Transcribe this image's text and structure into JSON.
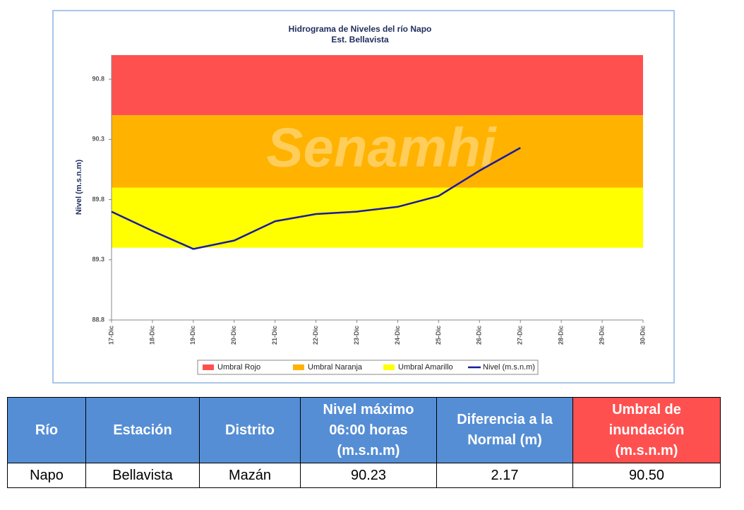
{
  "chart_data": {
    "type": "line",
    "title": "Hidrograma de Niveles del río Napo",
    "subtitle": "Est. Bellavista",
    "y_label": "Nivel (m.s.n.m)",
    "watermark": "Senamhi",
    "categories": [
      "17-Dic",
      "18-Dic",
      "19-Dic",
      "20-Dic",
      "21-Dic",
      "22-Dic",
      "23-Dic",
      "24-Dic",
      "25-Dic",
      "26-Dic",
      "27-Dic",
      "28-Dic",
      "29-Dic",
      "30-Dic"
    ],
    "bands": [
      {
        "name": "Umbral Rojo",
        "color": "#ff5050",
        "from": 90.5,
        "to": 91.0
      },
      {
        "name": "Umbral Naranja",
        "color": "#ffb200",
        "from": 89.9,
        "to": 90.5
      },
      {
        "name": "Umbral Amarillo",
        "color": "#ffff00",
        "from": 89.4,
        "to": 89.9
      }
    ],
    "series": [
      {
        "name": "Nivel (m.s.n.m)",
        "color": "#1a1aa0",
        "values": [
          89.7,
          89.54,
          89.39,
          89.46,
          89.62,
          89.68,
          89.7,
          89.74,
          89.83,
          90.04,
          90.23,
          null,
          null,
          null
        ]
      }
    ],
    "ylim": [
      88.8,
      91.0
    ],
    "yticks": [
      88.8,
      89.3,
      89.8,
      90.3,
      90.8
    ],
    "legend": "bottom"
  },
  "table": {
    "header": [
      "Río",
      "Estación",
      "Distrito",
      "Nivel máximo 06:00 horas (m.s.n.m)",
      "Diferencia a la Normal (m)",
      "Umbral de inundación (m.s.n.m)"
    ],
    "rows": [
      [
        "Napo",
        "Bellavista",
        "Mazán",
        "90.23",
        "2.17",
        "90.50"
      ]
    ]
  }
}
